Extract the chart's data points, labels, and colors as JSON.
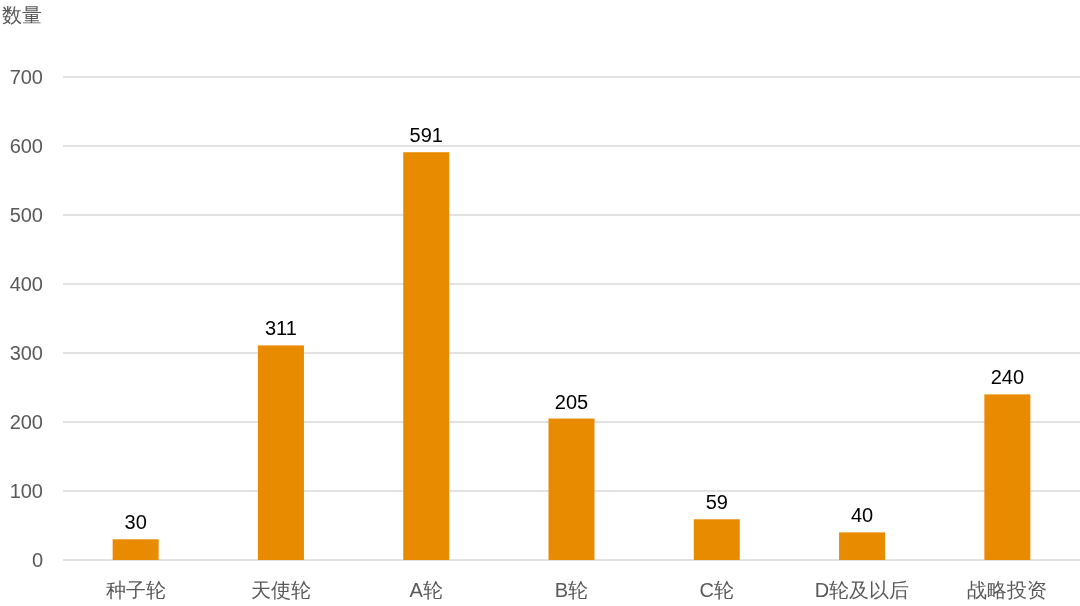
{
  "chart_data": {
    "type": "bar",
    "ylabel": "数量",
    "categories": [
      "种子轮",
      "天使轮",
      "A轮",
      "B轮",
      "C轮",
      "D轮及以后",
      "战略投资"
    ],
    "values": [
      30,
      311,
      591,
      205,
      59,
      40,
      240
    ],
    "color": "#e98b00",
    "ylim": [
      0,
      700
    ],
    "yticks": [
      0,
      100,
      200,
      300,
      400,
      500,
      600,
      700
    ],
    "grid": "y",
    "data_labels": true
  }
}
